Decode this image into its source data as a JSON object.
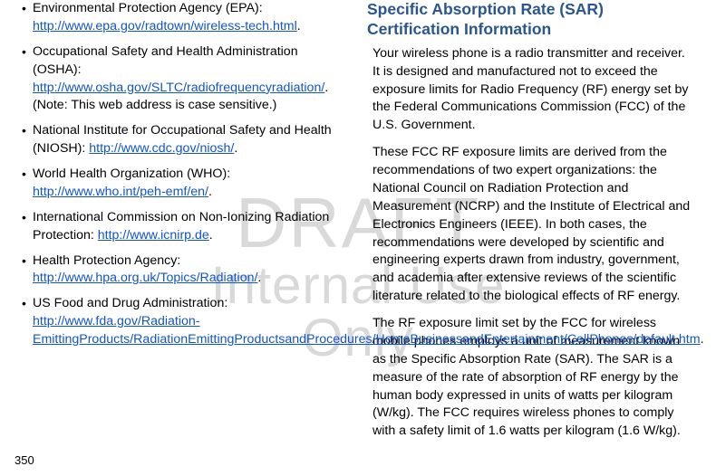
{
  "watermark": {
    "line1": "DRAFT",
    "line2": "Internal Use Only"
  },
  "left": {
    "items": [
      {
        "text": "Environmental Protection Agency (EPA): ",
        "link": "http://www.epa.gov/radtown/wireless-tech.html",
        "after": "."
      },
      {
        "text": "Occupational Safety and Health Administration (OSHA): ",
        "link": "http://www.osha.gov/SLTC/radiofrequencyradiation/",
        "after": ". (Note: This web address is case sensitive.)"
      },
      {
        "text": "National Institute for Occupational Safety and Health (NIOSH): ",
        "link": "http://www.cdc.gov/niosh/",
        "after": "."
      },
      {
        "text": "World Health Organization (WHO): ",
        "link": "http://www.who.int/peh-emf/en/",
        "after": "."
      },
      {
        "text": "International Commission on Non-Ionizing Radiation Protection: ",
        "link": "http://www.icnirp.de",
        "after": "."
      },
      {
        "text": "Health Protection Agency: ",
        "link": "http://www.hpa.org.uk/Topics/Radiation/",
        "after": "."
      },
      {
        "text": "US Food and Drug Administration: ",
        "link": "http://www.fda.gov/Radiation-EmittingProducts/RadiationEmittingProductsandProcedures/HomeBusinessandEntertainment/CellPhones/default.htm",
        "after": "."
      }
    ]
  },
  "right": {
    "heading": "Specific Absorption Rate (SAR) Certification Information",
    "p1": "Your wireless phone is a radio transmitter and receiver. It is designed and manufactured not to exceed the exposure limits for Radio Frequency (RF) energy set by the Federal Communications Commission (FCC) of the U.S. Government.",
    "p2": "These FCC RF exposure limits are derived from the recommendations of two expert organizations: the National Council on Radiation Protection and Measurement (NCRP) and the Institute of Electrical and Electronics Engineers (IEEE). In both cases, the recommendations were developed by scientific and engineering experts drawn from industry, government, and academia after extensive reviews of the scientific literature related to the biological effects of RF energy.",
    "p3": "The RF exposure limit set by the FCC for wireless mobile phones employs a unit of measurement known as the Specific Absorption Rate (SAR). The SAR is a measure of the rate of absorption of RF energy by the human body expressed in units of watts per kilogram (W/kg). The FCC requires wireless phones to comply with a safety limit of 1.6 watts per kilogram (1.6 W/kg)."
  },
  "pagenum": "350"
}
